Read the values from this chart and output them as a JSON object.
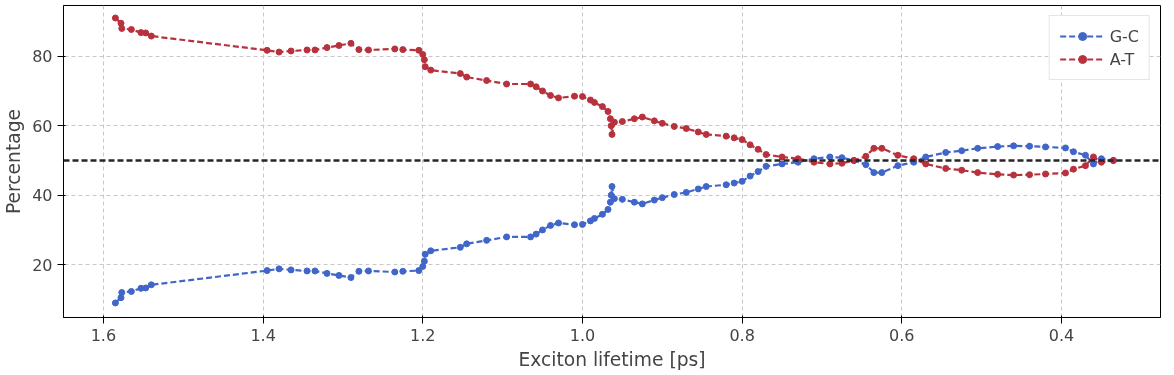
{
  "chart_data": {
    "type": "line",
    "xlabel": "Exciton lifetime [ps]",
    "ylabel": "Percentage",
    "xlim": [
      1.65,
      0.276
    ],
    "xticks": [
      1.6,
      1.4,
      1.2,
      {
        "value": 1,
        "label": "1.0"
      },
      0.8,
      0.6,
      0.4
    ],
    "ylim": [
      4.8,
      94.6
    ],
    "yticks": [
      20,
      40,
      60,
      80
    ],
    "grid": true,
    "legend": "top right",
    "marker": "circle",
    "line_style": "dashed",
    "ref_lines": [
      {
        "axis": "y",
        "value": 50,
        "color": "#262626",
        "line_style": "dashed"
      }
    ],
    "x": [
      1.585,
      1.578,
      1.577,
      1.565,
      1.553,
      1.547,
      1.54,
      1.395,
      1.38,
      1.365,
      1.345,
      1.335,
      1.32,
      1.305,
      1.29,
      1.28,
      1.268,
      1.235,
      1.225,
      1.205,
      1.2,
      1.198,
      1.197,
      1.19,
      1.153,
      1.145,
      1.12,
      1.095,
      1.065,
      1.058,
      1.05,
      1.04,
      1.03,
      1.01,
      1.0,
      0.99,
      0.985,
      0.975,
      0.968,
      0.965,
      0.964,
      0.963,
      0.96,
      0.95,
      0.935,
      0.925,
      0.91,
      0.9,
      0.885,
      0.87,
      0.855,
      0.845,
      0.82,
      0.81,
      0.8,
      0.79,
      0.78,
      0.77,
      0.75,
      0.73,
      0.71,
      0.69,
      0.675,
      0.66,
      0.645,
      0.635,
      0.625,
      0.605,
      0.585,
      0.57,
      0.545,
      0.525,
      0.505,
      0.48,
      0.46,
      0.44,
      0.42,
      0.395,
      0.385,
      0.37,
      0.36,
      0.35,
      0.335
    ],
    "series": [
      {
        "name": "G-C",
        "color": "#4166c9",
        "values": [
          9,
          10.5,
          12,
          12.3,
          13.2,
          13.3,
          14.2,
          18.3,
          18.8,
          18.5,
          18.2,
          18.2,
          17.5,
          16.9,
          16.3,
          18.1,
          18.2,
          17.9,
          18.1,
          18.3,
          19.5,
          21,
          23,
          24,
          25,
          26,
          27,
          28,
          28,
          28.8,
          30,
          31.3,
          32,
          31.5,
          31.6,
          32.6,
          33.3,
          34.5,
          35.9,
          38,
          40,
          42.5,
          39,
          38.8,
          38,
          37.5,
          38.6,
          39.3,
          40.2,
          40.8,
          41.8,
          42.5,
          43,
          43.5,
          44,
          45.5,
          46.8,
          48.3,
          49,
          49.5,
          50.5,
          51,
          50.8,
          50,
          48.8,
          46.5,
          46.5,
          48.5,
          49.5,
          51,
          52.3,
          52.8,
          53.5,
          54,
          54.2,
          54.1,
          53.9,
          53.6,
          52.5,
          51.5,
          49,
          50.5,
          50
        ]
      },
      {
        "name": "A-T",
        "color": "#b8323e",
        "values": [
          91,
          89.5,
          88,
          87.7,
          86.8,
          86.7,
          85.8,
          81.7,
          81.2,
          81.5,
          81.8,
          81.8,
          82.5,
          83.1,
          83.7,
          81.9,
          81.8,
          82.1,
          81.9,
          81.7,
          80.5,
          79,
          77,
          76,
          75,
          74,
          73,
          72,
          72,
          71.2,
          70,
          68.7,
          68,
          68.5,
          68.4,
          67.4,
          66.7,
          65.5,
          64.1,
          62,
          60,
          57.5,
          61,
          61.2,
          62,
          62.5,
          61.4,
          60.7,
          59.8,
          59.2,
          58.2,
          57.5,
          57,
          56.5,
          56,
          54.5,
          53.2,
          51.7,
          51,
          50.5,
          49.5,
          49,
          49.2,
          50,
          51.2,
          53.5,
          53.5,
          51.5,
          50.5,
          49,
          47.7,
          47.2,
          46.5,
          46,
          45.8,
          45.9,
          46.1,
          46.4,
          47.5,
          48.5,
          51,
          49.5,
          50
        ]
      }
    ]
  }
}
